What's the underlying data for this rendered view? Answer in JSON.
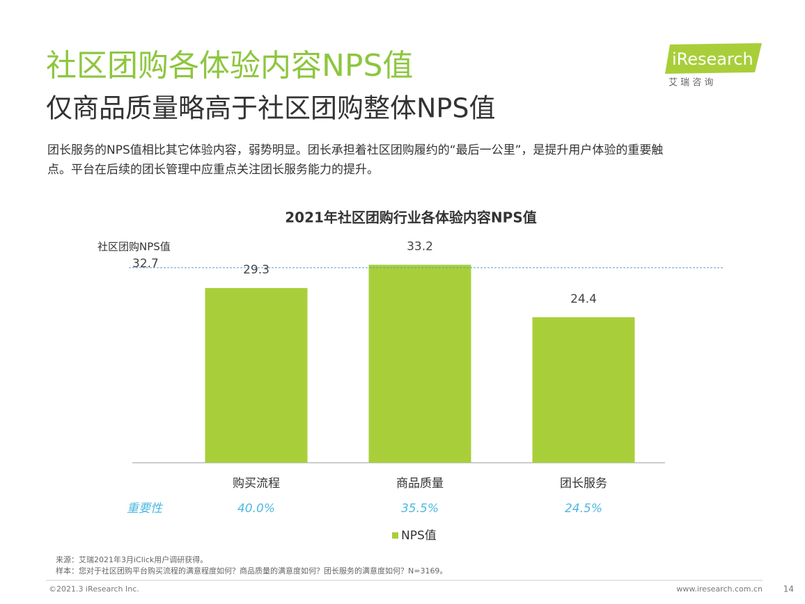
{
  "header": {
    "title": "社区团购各体验内容NPS值",
    "subtitle": "仅商品质量略高于社区团购整体NPS值",
    "description": [
      "团长服务的NPS值相比其它体验内容，弱势明显。团长承担着社区团购履约的“最后一公里”，是提升用户体验的重要触",
      "点。平台在后续的团长管理中应重点关注团长服务能力的提升。"
    ],
    "logo": "iResearch",
    "logo_sub": "艾 瑞 咨 询"
  },
  "chart_data": {
    "type": "bar",
    "title": "2021年社区团购行业各体验内容NPS值",
    "categories": [
      "购买流程",
      "商品质量",
      "团长服务"
    ],
    "series": [
      {
        "name": "NPS值",
        "color": "#a8cf3a",
        "values": [
          29.3,
          33.2,
          24.4
        ]
      }
    ],
    "reference": {
      "label": "社区团购NPS值",
      "value": 32.7,
      "color": "#5b9bd5"
    },
    "importance": {
      "label": "重要性",
      "values": [
        40.0,
        35.5,
        24.5
      ],
      "value_labels": [
        "40.0%",
        "35.5%",
        "24.5%"
      ],
      "color": "#4db8e0"
    }
  },
  "footer": {
    "source": "来源：艾瑞2021年3月iClick用户调研获得。",
    "sample": "样本：您对于社区团购平台购买流程的满意程度如何？商品质量的满意度如何？团长服务的满意度如何？N=3169。",
    "copyright": "©2021.3 iResearch Inc.",
    "website": "www.iresearch.com.cn",
    "page": "14"
  }
}
